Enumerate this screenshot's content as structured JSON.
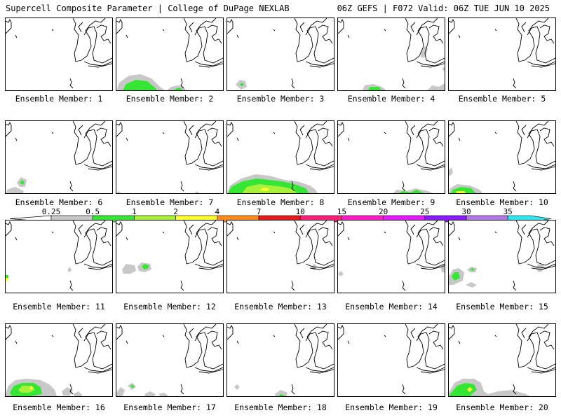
{
  "header": {
    "left_title": "Supercell Composite Parameter | College of DuPage NEXLAB",
    "right_title": "06Z GEFS | F072 Valid: 06Z TUE JUN 10 2025"
  },
  "members": [
    {
      "label": "Ensemble Member: 1",
      "fill": []
    },
    {
      "label": "Ensemble Member: 2",
      "fill": [
        {
          "c": "#c8c8c8",
          "p": "0,105 4,92 18,82 34,80 50,86 62,98 72,105"
        },
        {
          "c": "#35e635",
          "p": "8,105 14,94 28,88 44,90 56,100 60,105"
        },
        {
          "c": "#c8c8c8",
          "p": "70,105 78,98 90,96 98,100 100,105"
        },
        {
          "c": "#35e635",
          "p": "80,105 86,100 92,100 96,105"
        }
      ]
    },
    {
      "label": "Ensemble Member: 3",
      "fill": [
        {
          "c": "#c8c8c8",
          "p": "12,95 18,88 26,90 28,98 20,102"
        },
        {
          "c": "#35e635",
          "p": "18,95 21,92 24,95 21,97"
        }
      ]
    },
    {
      "label": "Ensemble Member: 4",
      "fill": [
        {
          "c": "#c8c8c8",
          "p": "34,105 38,96 50,94 62,98 72,105"
        },
        {
          "c": "#35e635",
          "p": "42,105 46,98 58,98 64,105"
        },
        {
          "c": "#c8c8c8",
          "p": "118,48 124,40 128,44 124,56 118,56"
        },
        {
          "c": "#c8c8c8",
          "p": "126,105 134,96 144,98 154,92 154,105"
        },
        {
          "c": "#c8c8c8",
          "p": "148,72 154,68 154,78"
        }
      ]
    },
    {
      "label": "Ensemble Member: 5",
      "fill": []
    },
    {
      "label": "Ensemble Member: 6",
      "fill": [
        {
          "c": "#c8c8c8",
          "p": "0,105 2,98 14,94 26,100 24,105"
        },
        {
          "c": "#c8c8c8",
          "p": "16,88 22,80 30,84 28,94 20,94"
        },
        {
          "c": "#35e635",
          "p": "20,88 24,84 27,88 24,91"
        }
      ]
    },
    {
      "label": "Ensemble Member: 7",
      "fill": [
        {
          "c": "#c8c8c8",
          "p": "0,105 2,100 6,102 4,105"
        },
        {
          "c": "#c8c8c8",
          "p": "110,105 114,100 120,104 118,105"
        }
      ]
    },
    {
      "label": "Ensemble Member: 8",
      "fill": [
        {
          "c": "#c8c8c8",
          "p": "0,105 4,92 20,82 40,76 60,78 82,84 100,86 118,92 126,98 130,105"
        },
        {
          "c": "#35e635",
          "p": "0,105 6,94 22,86 42,82 60,84 78,86 96,90 112,96 118,105"
        },
        {
          "c": "#a8f03a",
          "p": "20,105 28,94 46,90 62,92 80,94 96,98 100,105"
        },
        {
          "c": "#ffff2e",
          "p": "46,99 52,95 60,96 58,100"
        }
      ]
    },
    {
      "label": "Ensemble Member: 9",
      "fill": [
        {
          "c": "#c8c8c8",
          "p": "76,105 84,98 98,100 110,96 128,100 140,105"
        },
        {
          "c": "#35e635",
          "p": "84,105 92,100 104,102 112,98 124,104 126,105"
        },
        {
          "c": "#c8c8c8",
          "p": "150,64 154,60 154,72"
        }
      ]
    },
    {
      "label": "Ensemble Member: 10",
      "fill": [
        {
          "c": "#c8c8c8",
          "p": "0,105 2,96 12,90 30,92 44,98 50,105"
        },
        {
          "c": "#35e635",
          "p": "2,105 6,98 18,94 32,96 40,105"
        },
        {
          "c": "#ffff2e",
          "p": "8,105 12,100 22,100 26,105"
        },
        {
          "c": "#c8c8c8",
          "p": "0,70 4,66 6,74 2,78 0,78"
        }
      ]
    },
    {
      "label": "Ensemble Member: 11",
      "fill": [
        {
          "c": "#ffff2e",
          "p": "0,82 4,82 4,86 0,86"
        },
        {
          "c": "#35e635",
          "p": "0,78 4,78 4,82 0,82"
        },
        {
          "c": "#c8c8c8",
          "p": "88,70 92,66 94,72 90,74"
        }
      ]
    },
    {
      "label": "Ensemble Member: 12",
      "fill": [
        {
          "c": "#c8c8c8",
          "p": "8,70 14,62 26,64 28,72 20,76 10,76"
        },
        {
          "c": "#c8c8c8",
          "p": "30,66 36,60 48,62 50,70 40,74 32,72"
        },
        {
          "c": "#35e635",
          "p": "36,66 40,62 46,64 46,68 40,70"
        }
      ]
    },
    {
      "label": "Ensemble Member: 13",
      "fill": [
        {
          "c": "#c8c8c8",
          "p": "120,66 124,62 128,66 124,72"
        }
      ]
    },
    {
      "label": "Ensemble Member: 14",
      "fill": [
        {
          "c": "#c8c8c8",
          "p": "0,76 4,72 8,76 4,80"
        },
        {
          "c": "#c8c8c8",
          "p": "146,66 154,60 154,74 148,74"
        }
      ]
    },
    {
      "label": "Ensemble Member: 15",
      "fill": [
        {
          "c": "#c8c8c8",
          "p": "0,80 6,70 14,68 22,74 20,86 6,92 0,92"
        },
        {
          "c": "#35e635",
          "p": "4,80 8,74 14,74 16,82 8,86"
        },
        {
          "c": "#c8c8c8",
          "p": "26,70 32,66 40,68 38,74 30,74"
        },
        {
          "c": "#35e635",
          "p": "30,70 34,68 37,70 34,72"
        },
        {
          "c": "#c8c8c8",
          "p": "124,68 128,62 136,64 134,72 128,74"
        },
        {
          "c": "#c8c8c8",
          "p": "24,92 32,88 40,92 34,96"
        }
      ]
    },
    {
      "label": "Ensemble Member: 16",
      "fill": [
        {
          "c": "#c8c8c8",
          "p": "0,100 4,88 14,80 30,78 50,80 62,86 70,94 74,105 0,105"
        },
        {
          "c": "#35e635",
          "p": "6,98 12,88 24,84 40,84 50,90 52,100 30,104 10,104"
        },
        {
          "c": "#a8f03a",
          "p": "18,94 24,88 36,88 42,94 34,98 22,98"
        },
        {
          "c": "#ffff2e",
          "p": "34,92 37,88 40,91 37,94"
        },
        {
          "c": "#c8c8c8",
          "p": "80,96 88,90 96,94 92,102 82,102"
        },
        {
          "c": "#c8c8c8",
          "p": "96,100 104,96 110,102 100,105"
        }
      ]
    },
    {
      "label": "Ensemble Member: 17",
      "fill": [
        {
          "c": "#c8c8c8",
          "p": "0,98 6,90 12,94 8,105 0,105"
        },
        {
          "c": "#c8c8c8",
          "p": "16,88 22,84 28,90 22,94"
        },
        {
          "c": "#35e635",
          "p": "20,88 24,86 26,90 22,91"
        },
        {
          "c": "#c8c8c8",
          "p": "40,100 48,96 56,100 52,105 42,105"
        },
        {
          "c": "#c8c8c8",
          "p": "60,100 68,98 74,102 66,105"
        }
      ]
    },
    {
      "label": "Ensemble Member: 18",
      "fill": [
        {
          "c": "#c8c8c8",
          "p": "10,90 14,86 18,90 14,94"
        },
        {
          "c": "#c8c8c8",
          "p": "68,100 76,94 86,98 84,105 70,105"
        },
        {
          "c": "#35e635",
          "p": "72,105 76,100 82,102 80,105"
        }
      ]
    },
    {
      "label": "Ensemble Member: 19",
      "fill": []
    },
    {
      "label": "Ensemble Member: 20",
      "fill": [
        {
          "c": "#c8c8c8",
          "p": "0,98 8,84 20,78 36,78 46,84 50,96 56,100 70,96 90,94 110,100 120,105 0,105"
        },
        {
          "c": "#35e635",
          "p": "2,100 12,88 24,84 36,86 40,94 30,102 60,104 100,104 110,105 0,105"
        },
        {
          "c": "#ffff2e",
          "p": "26,94 30,90 34,93 30,97"
        },
        {
          "c": "#35e635",
          "p": "4,100 8,96 14,98 10,102"
        }
      ]
    }
  ],
  "colorbar": {
    "labels": [
      "0.25",
      "0.5",
      "1",
      "2",
      "4",
      "7",
      "10",
      "15",
      "20",
      "25",
      "30",
      "35"
    ],
    "colors": [
      "#c8c8c8",
      "#35e635",
      "#a8f03a",
      "#ffff2e",
      "#ff8c1a",
      "#e61c1c",
      "#ff1e78",
      "#ff19c8",
      "#e619ff",
      "#8c19ff",
      "#b478e6",
      "#2ee6f0"
    ]
  }
}
